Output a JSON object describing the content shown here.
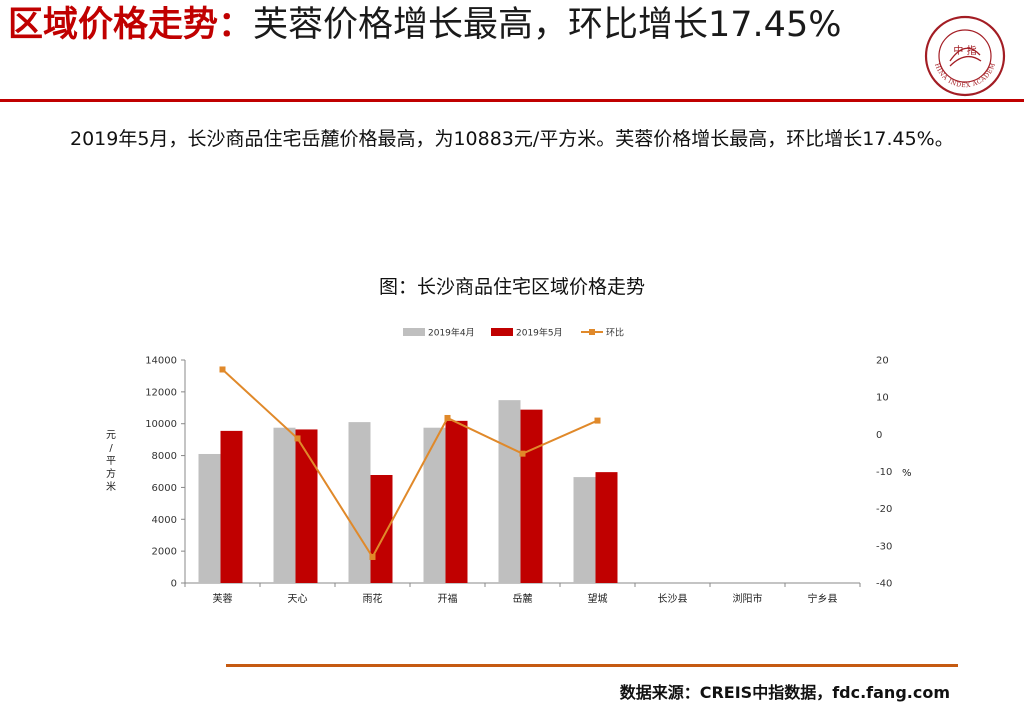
{
  "header": {
    "title_accent": "区域价格走势：",
    "title_rest": "芙蓉价格增长最高，环比增长17.45%"
  },
  "logo": {
    "icon": "china-index-academy-seal-icon",
    "center_text": "中 指",
    "ring_text": "CHINA INDEX ACADEMY",
    "color": "#a31d24"
  },
  "summary": "2019年5月，长沙商品住宅岳麓价格最高，为10883元/平方米。芙蓉价格增长最高，环比增长17.45%。",
  "footer": {
    "source": "数据来源：CREIS中指数据，fdc.fang.com"
  },
  "chart_data": {
    "type": "bar",
    "title": "图：长沙商品住宅区域价格走势",
    "categories": [
      "芙蓉",
      "天心",
      "雨花",
      "开福",
      "岳麓",
      "望城",
      "长沙县",
      "浏阳市",
      "宁乡县"
    ],
    "series": [
      {
        "name": "2019年4月",
        "type": "bar",
        "axis": "left",
        "color": "#bfbfbf",
        "values": [
          8100,
          9750,
          10100,
          9750,
          11480,
          6650,
          null,
          null,
          null
        ]
      },
      {
        "name": "2019年5月",
        "type": "bar",
        "axis": "left",
        "color": "#c00000",
        "values": [
          9550,
          9640,
          6780,
          10180,
          10883,
          6960,
          null,
          null,
          null
        ]
      },
      {
        "name": "环比",
        "type": "line",
        "axis": "right",
        "color": "#e0892a",
        "values": [
          17.45,
          -1.1,
          -33,
          4.4,
          -5.2,
          3.7,
          null,
          null,
          null
        ]
      }
    ],
    "ylabel_left": "元/平方米",
    "ylim_left": [
      0,
      14000
    ],
    "yticks_left": [
      0,
      2000,
      4000,
      6000,
      8000,
      10000,
      12000,
      14000
    ],
    "ylabel_right": "%",
    "ylim_right": [
      -40,
      20
    ],
    "yticks_right": [
      -40,
      -30,
      -20,
      -10,
      0,
      10,
      20
    ],
    "legend_position": "top",
    "grid": false
  }
}
